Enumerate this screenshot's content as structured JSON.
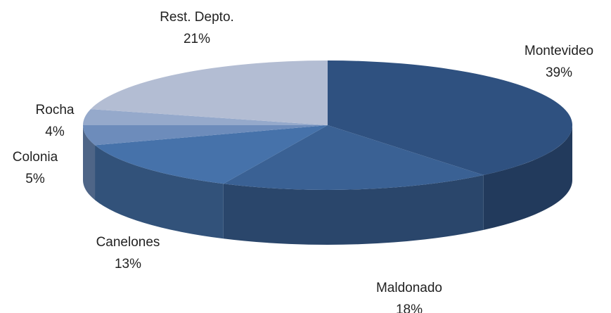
{
  "chart_data": {
    "type": "pie",
    "categories": [
      "Montevideo",
      "Maldonado",
      "Canelones",
      "Colonia",
      "Rocha",
      "Rest. Depto."
    ],
    "values": [
      39,
      18,
      13,
      5,
      4,
      21
    ],
    "value_labels": [
      "39%",
      "18%",
      "13%",
      "5%",
      "4%",
      "21%"
    ],
    "colors": [
      "#2f5180",
      "#3a6194",
      "#4672aa",
      "#6d8cbb",
      "#95a9cb",
      "#b3bdd3"
    ]
  }
}
